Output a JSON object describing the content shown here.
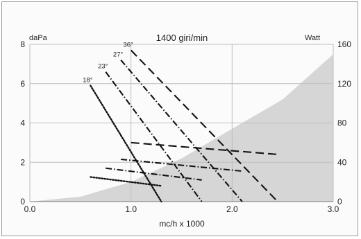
{
  "chart_data": {
    "type": "line",
    "title": "1400 giri/min",
    "xlabel": "mc/h x 1000",
    "ylabel_left": "daPa",
    "ylabel_right": "Watt",
    "xlim": [
      0,
      3.0
    ],
    "ylim_left": [
      0,
      8
    ],
    "ylim_right": [
      0,
      160
    ],
    "x_ticks": [
      "0.0",
      "1.0",
      "2.0",
      "3.0"
    ],
    "y_ticks_left": [
      "0",
      "2",
      "4",
      "6",
      "8"
    ],
    "y_ticks_right": [
      "0",
      "40",
      "80",
      "120",
      "160"
    ],
    "grid": true,
    "shaded_region": {
      "description_values": [
        [
          0.0,
          0.0
        ],
        [
          0.5,
          0.25
        ],
        [
          1.0,
          1.0
        ],
        [
          1.5,
          2.2
        ],
        [
          2.0,
          3.7
        ],
        [
          2.5,
          5.2
        ],
        [
          3.0,
          7.5
        ]
      ]
    },
    "pressure_series": [
      {
        "name": "18°",
        "dash": "dot",
        "points": [
          [
            0.6,
            5.9
          ],
          [
            1.3,
            0.0
          ]
        ]
      },
      {
        "name": "23°",
        "dash": "dashdot",
        "points": [
          [
            0.75,
            6.6
          ],
          [
            1.7,
            0.0
          ]
        ]
      },
      {
        "name": "27°",
        "dash": "dashdot",
        "points": [
          [
            0.9,
            7.2
          ],
          [
            2.1,
            0.0
          ]
        ]
      },
      {
        "name": "36°",
        "dash": "dash",
        "points": [
          [
            1.0,
            7.7
          ],
          [
            2.45,
            0.0
          ]
        ]
      }
    ],
    "power_series": [
      {
        "name": "18°",
        "dash": "dot",
        "points": [
          [
            0.6,
            1.25
          ],
          [
            1.3,
            0.8
          ]
        ]
      },
      {
        "name": "23°",
        "dash": "dashdot",
        "points": [
          [
            0.75,
            1.7
          ],
          [
            1.7,
            1.1
          ]
        ]
      },
      {
        "name": "27°",
        "dash": "dashdot",
        "points": [
          [
            0.9,
            2.15
          ],
          [
            2.1,
            1.55
          ]
        ]
      },
      {
        "name": "36°",
        "dash": "dash",
        "points": [
          [
            1.0,
            3.0
          ],
          [
            2.45,
            2.4
          ]
        ]
      }
    ]
  }
}
